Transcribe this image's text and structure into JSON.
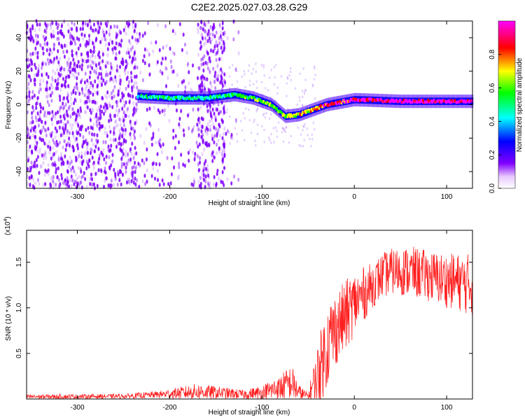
{
  "figure": {
    "title": "C2E2.2025.027.03.28.G29"
  },
  "chart_data": [
    {
      "type": "heatmap",
      "xlabel": "Height of straight line (km)",
      "ylabel": "Frequency (Hz)",
      "xlim": [
        -355,
        128
      ],
      "ylim": [
        -50,
        50
      ],
      "x_ticks": [
        -300,
        -200,
        -100,
        0,
        100
      ],
      "y_ticks": [
        -40,
        -20,
        0,
        20,
        40
      ],
      "colorbar": {
        "label": "Normalized spectral amplitude",
        "range": [
          0.0,
          1.0
        ],
        "ticks": [
          0.0,
          0.2,
          0.4,
          0.6,
          0.8
        ],
        "colors": [
          "#ffffff",
          "#8000ff",
          "#0000ff",
          "#00ffff",
          "#00ff00",
          "#ffff00",
          "#ff0000",
          "#ff00ff"
        ]
      },
      "ridge": {
        "x": [
          -235,
          -200,
          -160,
          -130,
          -110,
          -90,
          -75,
          -60,
          -45,
          -30,
          0,
          50,
          128
        ],
        "freq_hz": [
          5,
          4,
          4,
          6,
          4,
          0,
          -7,
          -6,
          -3,
          0,
          3,
          2,
          2
        ],
        "amplitude": [
          0.35,
          0.4,
          0.4,
          0.45,
          0.5,
          0.55,
          0.55,
          0.6,
          0.65,
          0.75,
          0.8,
          0.85,
          0.85
        ]
      }
    },
    {
      "type": "line",
      "xlabel": "Height of straight line (km)",
      "ylabel": "SNR (10 * v/v)",
      "y_multiplier": "(x10",
      "y_multiplier_exp": "4",
      "y_multiplier_close": ")",
      "xlim": [
        -355,
        128
      ],
      "ylim": [
        0,
        18500
      ],
      "x_ticks": [
        -300,
        -200,
        -100,
        0,
        100
      ],
      "y_ticks": [
        5000,
        10000,
        15000
      ],
      "y_tick_labels": [
        "0.5",
        "1.0",
        "1.5"
      ],
      "grid": false,
      "series": [
        {
          "color": "#ff2020",
          "envelope": {
            "x": [
              -355,
              -250,
              -210,
              -170,
              -150,
              -120,
              -100,
              -80,
              -68,
              -60,
              -50,
              -40,
              -32,
              -25,
              -18,
              -10,
              0,
              10,
              20,
              30,
              40,
              60,
              80,
              100,
              115,
              128
            ],
            "mean": [
              250,
              300,
              500,
              800,
              700,
              500,
              700,
              1200,
              1800,
              700,
              300,
              2500,
              5000,
              7000,
              8000,
              9000,
              10500,
              11500,
              12500,
              13500,
              14000,
              14000,
              13500,
              13000,
              12800,
              12500
            ],
            "spread": [
              250,
              250,
              400,
              900,
              700,
              500,
              800,
              1500,
              2000,
              900,
              400,
              3500,
              4500,
              4500,
              4000,
              4000,
              3500,
              3000,
              2500,
              2500,
              2500,
              2800,
              2800,
              3000,
              3200,
              3500
            ]
          }
        }
      ]
    }
  ]
}
